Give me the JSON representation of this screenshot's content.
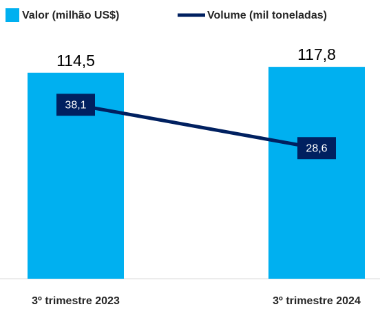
{
  "chart_data": {
    "type": "bar",
    "categories": [
      "3º trimestre 2023",
      "3º trimestre 2024"
    ],
    "series": [
      {
        "name": "Valor (milhão US$)",
        "color": "#00b0f0",
        "values": [
          114.5,
          117.8
        ],
        "value_labels": [
          "114,5",
          "117,8"
        ]
      },
      {
        "name": "Volume (mil toneladas)",
        "type": "line",
        "axis": "y2",
        "color": "#002060",
        "values": [
          38.1,
          28.6
        ],
        "value_labels": [
          "38,1",
          "28,6"
        ]
      }
    ],
    "ylim": [
      0,
      132
    ],
    "y2lim": [
      0,
      52
    ],
    "grid": false
  }
}
